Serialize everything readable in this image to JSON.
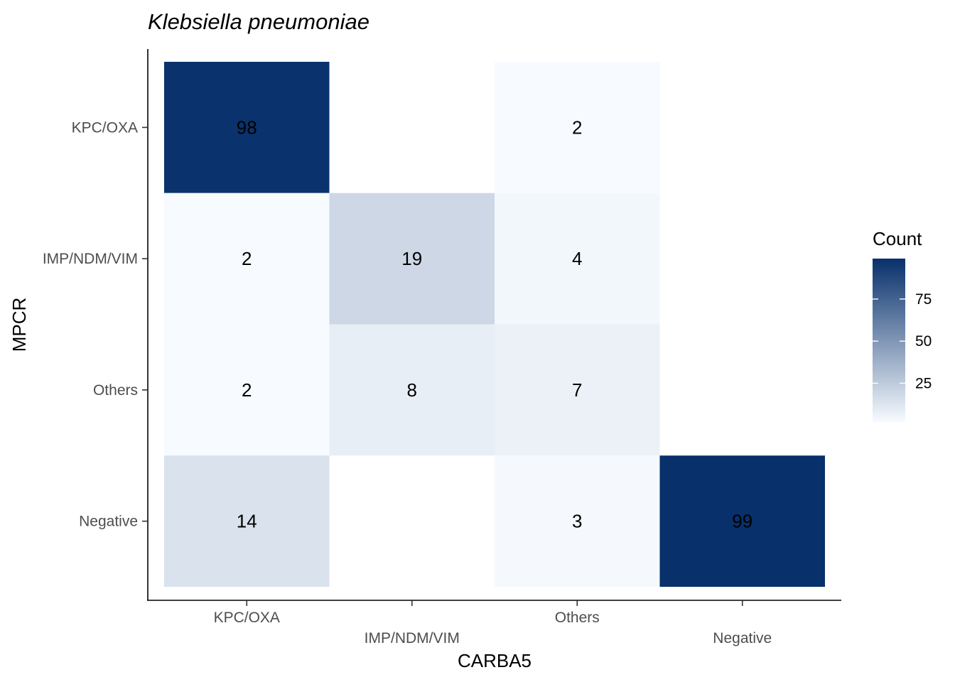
{
  "chart_data": {
    "type": "heatmap",
    "title": "Klebsiella pneumoniae",
    "xlabel": "CARBA5",
    "ylabel": "MPCR",
    "x_categories": [
      "KPC/OXA",
      "IMP/NDM/VIM",
      "Others",
      "Negative"
    ],
    "y_categories": [
      "KPC/OXA",
      "IMP/NDM/VIM",
      "Others",
      "Negative"
    ],
    "cells": [
      {
        "x": "KPC/OXA",
        "y": "KPC/OXA",
        "value": 98,
        "label": "98"
      },
      {
        "x": "Others",
        "y": "KPC/OXA",
        "value": 2,
        "label": "2"
      },
      {
        "x": "KPC/OXA",
        "y": "IMP/NDM/VIM",
        "value": 2,
        "label": "2"
      },
      {
        "x": "IMP/NDM/VIM",
        "y": "IMP/NDM/VIM",
        "value": 19,
        "label": "19"
      },
      {
        "x": "Others",
        "y": "IMP/NDM/VIM",
        "value": 4,
        "label": "4"
      },
      {
        "x": "KPC/OXA",
        "y": "Others",
        "value": 2,
        "label": "2"
      },
      {
        "x": "IMP/NDM/VIM",
        "y": "Others",
        "value": 8,
        "label": "8"
      },
      {
        "x": "Others",
        "y": "Others",
        "value": 7,
        "label": "7"
      },
      {
        "x": "KPC/OXA",
        "y": "Negative",
        "value": 14,
        "label": "14"
      },
      {
        "x": "Others",
        "y": "Negative",
        "value": 3,
        "label": "3"
      },
      {
        "x": "Negative",
        "y": "Negative",
        "value": 99,
        "label": "99"
      }
    ],
    "legend": {
      "title": "Count",
      "position": "right",
      "ticks": [
        25,
        50,
        75
      ],
      "tick_labels": [
        "25",
        "50",
        "75"
      ],
      "range": [
        2,
        99
      ],
      "low_color": "#f7fbff",
      "high_color": "#08306b"
    },
    "grid": false
  }
}
